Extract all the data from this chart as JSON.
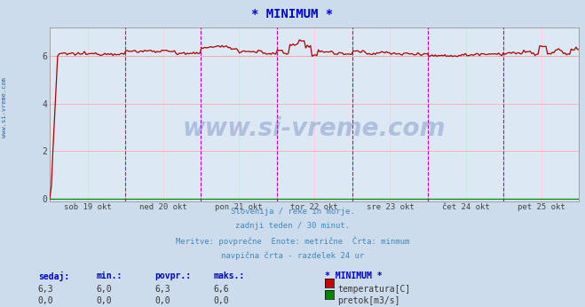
{
  "title": "* MINIMUM *",
  "title_color": "#0000cc",
  "bg_color": "#ccdcec",
  "plot_bg_color": "#dce8f4",
  "grid_color": "#ffaaaa",
  "vgrid_color": "#ffcccc",
  "xticklabels": [
    "sob 19 okt",
    "ned 20 okt",
    "pon 21 okt",
    "tor 22 okt",
    "sre 23 okt",
    "čet 24 okt",
    "pet 25 okt"
  ],
  "yticks": [
    0,
    2,
    4,
    6
  ],
  "ylim": [
    -0.1,
    7.2
  ],
  "watermark": "www.si-vreme.com",
  "watermark_color": "#4466aa",
  "subtitle_lines": [
    "Slovenija / reke in morje.",
    "zadnji teden / 30 minut.",
    "Meritve: povprečne  Enote: metrične  Črta: minmum",
    "navpična črta - razdelek 24 ur"
  ],
  "subtitle_color": "#4488bb",
  "legend_header": "* MINIMUM *",
  "legend_header_color": "#0000cc",
  "legend_items": [
    {
      "label": "temperatura[C]",
      "color": "#cc0000"
    },
    {
      "label": "pretok[m3/s]",
      "color": "#008800"
    }
  ],
  "table_headers": [
    "sedaj:",
    "min.:",
    "povpr.:",
    "maks.:"
  ],
  "table_rows": [
    [
      "6,3",
      "6,0",
      "6,3",
      "6,6"
    ],
    [
      "0,0",
      "0,0",
      "0,0",
      "0,0"
    ]
  ],
  "table_color": "#0000cc",
  "table_value_color": "#333333",
  "temp_line_color": "#aa0000",
  "flow_line_color": "#008800",
  "min_line_color": "#ff8888",
  "vline_color": "#bb00bb",
  "sidebar_text": "www.si-vreme.com",
  "sidebar_color": "#336699",
  "n_points": 336,
  "figwidth": 6.59,
  "figheight": 3.46
}
